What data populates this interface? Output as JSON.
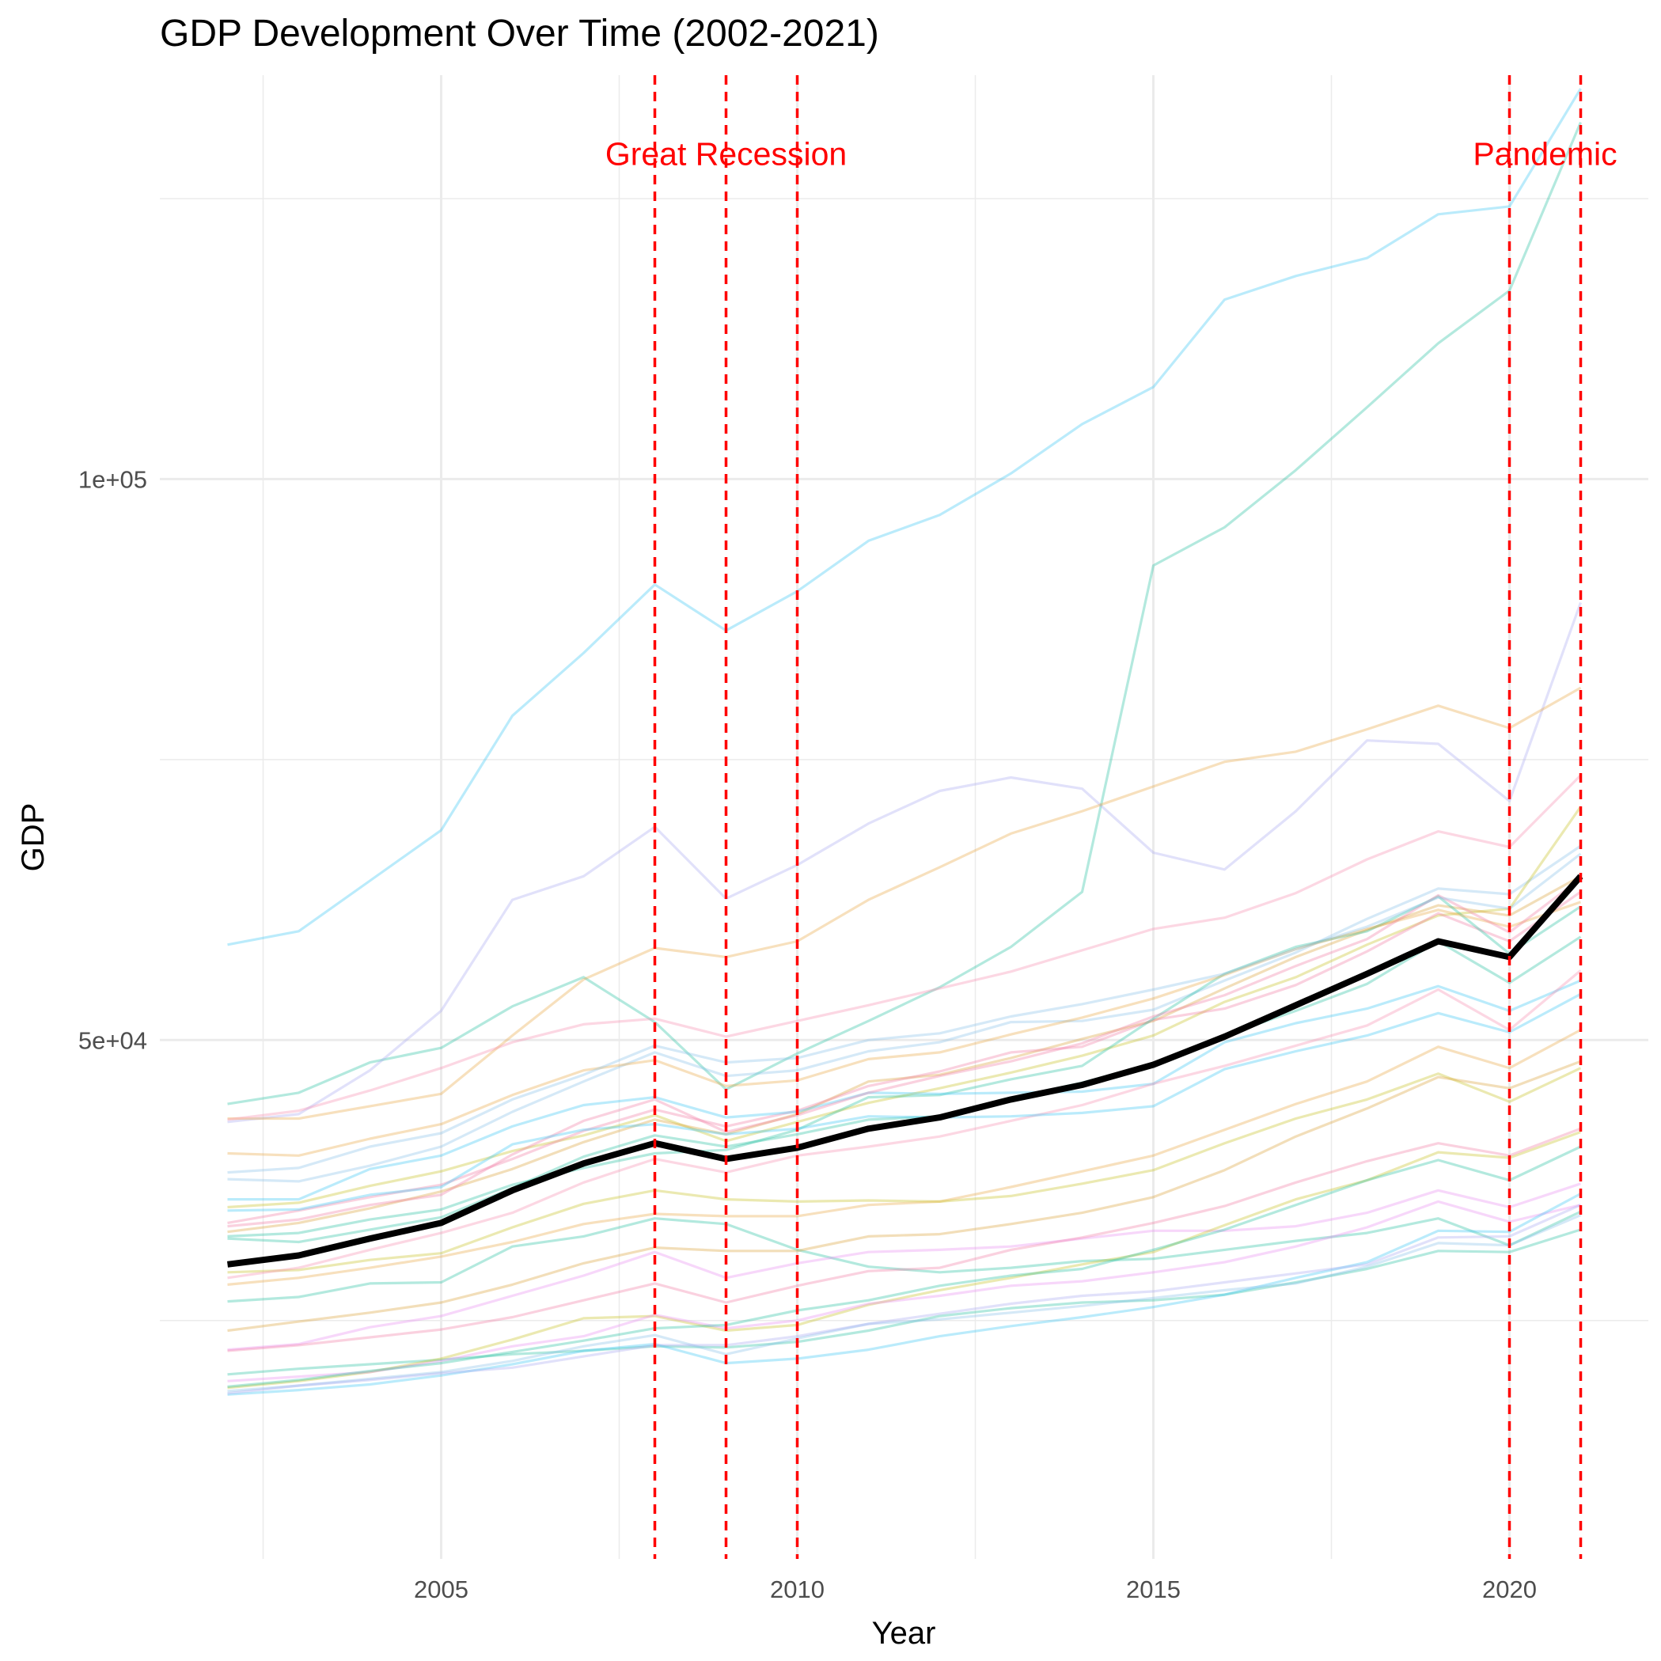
{
  "chart_data": {
    "type": "line",
    "title": "GDP Development Over Time (2002-2021)",
    "xlabel": "Year",
    "ylabel": "GDP",
    "x": [
      2002,
      2003,
      2004,
      2005,
      2006,
      2007,
      2008,
      2009,
      2010,
      2011,
      2012,
      2013,
      2014,
      2015,
      2016,
      2017,
      2018,
      2019,
      2020,
      2021
    ],
    "xlim": [
      2001.05,
      2021.95
    ],
    "ylim": [
      3750,
      136000
    ],
    "x_ticks": [
      2005,
      2010,
      2015,
      2020
    ],
    "x_tick_labels": [
      "2005",
      "2010",
      "2015",
      "2020"
    ],
    "y_ticks": [
      50000,
      100000
    ],
    "y_tick_labels": [
      "5e+04",
      "1e+05"
    ],
    "grid": true,
    "legend": "none",
    "annotations": [
      {
        "text": "Great Recession",
        "x": 2009,
        "y": 128000
      },
      {
        "text": "Pandemic",
        "x": 2020.5,
        "y": 128000
      }
    ],
    "event_lines": {
      "color": "#ff0000",
      "years": [
        2008,
        2009,
        2010,
        2020,
        2021
      ]
    },
    "highlight_series": {
      "color": "#000000",
      "values": [
        30000,
        30800,
        32300,
        33700,
        36600,
        39000,
        40800,
        39400,
        40400,
        42100,
        43100,
        44700,
        46000,
        47800,
        50300,
        53100,
        55900,
        58800,
        57400,
        64600
      ]
    },
    "series": [
      {
        "color": "#38c6f4",
        "values": [
          58500,
          59700,
          64200,
          68700,
          78900,
          84500,
          90600,
          86500,
          90000,
          94500,
          96800,
          100500,
          104900,
          108200,
          116000,
          118100,
          119700,
          123600,
          124300,
          134800
        ]
      },
      {
        "color": "#25c1a0",
        "values": [
          44300,
          45300,
          48000,
          49300,
          53000,
          55600,
          51600,
          45600,
          48800,
          51700,
          54700,
          58300,
          63200,
          92300,
          95700,
          100800,
          106400,
          112100,
          116800,
          131800
        ]
      },
      {
        "color": "#a8a8f0",
        "values": [
          42700,
          43400,
          47300,
          52600,
          62500,
          64600,
          69000,
          62600,
          65600,
          69300,
          72200,
          73400,
          72400,
          66700,
          65200,
          70400,
          76700,
          76400,
          71300,
          89000
        ]
      },
      {
        "color": "#e7a743",
        "values": [
          43000,
          43000,
          44100,
          45200,
          50400,
          55400,
          58200,
          57400,
          58800,
          62500,
          65400,
          68400,
          70400,
          72600,
          74800,
          75700,
          77700,
          79800,
          77800,
          81400
        ]
      },
      {
        "color": "#f58cb0",
        "values": [
          42900,
          43700,
          45500,
          47500,
          49800,
          51400,
          51900,
          50300,
          51700,
          53100,
          54600,
          56100,
          58000,
          59900,
          60900,
          63100,
          66100,
          68600,
          67200,
          73600
        ]
      },
      {
        "color": "#88c0e8",
        "values": [
          37600,
          37400,
          38800,
          40500,
          43600,
          46300,
          48900,
          46800,
          47300,
          49000,
          49800,
          51600,
          51700,
          52700,
          55300,
          57800,
          60800,
          63500,
          63000,
          67300
        ]
      },
      {
        "color": "#c7c020",
        "values": [
          35100,
          35500,
          37000,
          38300,
          40100,
          41500,
          43300,
          41000,
          42700,
          44400,
          45700,
          47100,
          48600,
          50400,
          53400,
          55600,
          58500,
          61100,
          61700,
          70800
        ]
      },
      {
        "color": "#d9a036",
        "values": [
          32900,
          33700,
          35000,
          36500,
          38500,
          40900,
          42900,
          41600,
          43400,
          46300,
          46900,
          48400,
          50100,
          51700,
          54600,
          57400,
          59800,
          62000,
          61100,
          64600
        ]
      },
      {
        "color": "#f27ba2",
        "values": [
          33700,
          34800,
          36000,
          37100,
          39400,
          41900,
          43800,
          42300,
          43700,
          45900,
          47200,
          48900,
          49400,
          51800,
          52800,
          54900,
          57900,
          61300,
          58800,
          63200
        ]
      },
      {
        "color": "#25c1a0",
        "values": [
          32500,
          32800,
          34000,
          34900,
          37100,
          38600,
          39900,
          40200,
          42000,
          44900,
          45100,
          46500,
          47700,
          51900,
          55900,
          58300,
          59700,
          62800,
          57700,
          61900
        ]
      },
      {
        "color": "#38c6f4",
        "values": [
          35800,
          35800,
          38500,
          39700,
          42300,
          44200,
          44900,
          43100,
          43600,
          45300,
          45200,
          45300,
          45400,
          46100,
          49800,
          51500,
          52800,
          54800,
          52600,
          55300
        ]
      },
      {
        "color": "#e7a743",
        "values": [
          39900,
          39700,
          41200,
          42500,
          45100,
          47300,
          48200,
          45900,
          46400,
          48300,
          48900,
          50500,
          52000,
          53700,
          55800,
          58100,
          59900,
          61600,
          60100,
          62300
        ]
      },
      {
        "color": "#f27ba2",
        "values": [
          33400,
          34000,
          35300,
          36200,
          39800,
          42800,
          44700,
          41800,
          43300,
          45300,
          46800,
          48100,
          49700,
          52100,
          54000,
          56600,
          59000,
          62900,
          59600,
          64400
        ]
      },
      {
        "color": "#25c1a0",
        "values": [
          32300,
          32000,
          33100,
          34200,
          36800,
          39600,
          41500,
          40500,
          41600,
          42900,
          43200,
          44800,
          46200,
          47900,
          50400,
          52600,
          55000,
          58800,
          55100,
          59200
        ]
      },
      {
        "color": "#88c0e8",
        "values": [
          38200,
          38600,
          40500,
          41700,
          44700,
          46900,
          49500,
          48000,
          48400,
          50000,
          50600,
          52100,
          53200,
          54500,
          55900,
          58100,
          60100,
          62700,
          61700,
          66600
        ]
      },
      {
        "color": "#e7a743",
        "values": [
          28200,
          28800,
          29700,
          30700,
          32000,
          33600,
          34500,
          34300,
          34300,
          35300,
          35600,
          36900,
          38300,
          39700,
          42000,
          44300,
          46300,
          49400,
          47500,
          50900
        ]
      },
      {
        "color": "#c7c020",
        "values": [
          29300,
          29500,
          30400,
          31000,
          33300,
          35400,
          36600,
          35800,
          35600,
          35700,
          35600,
          36100,
          37200,
          38400,
          40800,
          43000,
          44700,
          47000,
          44500,
          47500
        ]
      },
      {
        "color": "#f58cb0",
        "values": [
          28800,
          29700,
          31300,
          32800,
          34600,
          37300,
          39400,
          38200,
          39700,
          40500,
          41400,
          42800,
          44200,
          46100,
          47700,
          49500,
          51300,
          54500,
          50900,
          56200
        ]
      },
      {
        "color": "#25c1a0",
        "values": [
          26700,
          27100,
          28300,
          28400,
          31600,
          32500,
          34100,
          33600,
          31300,
          29800,
          29300,
          29700,
          30300,
          30500,
          31300,
          32100,
          32800,
          34100,
          31700,
          34700
        ]
      },
      {
        "color": "#38c6f4",
        "values": [
          34800,
          34900,
          36200,
          36900,
          40700,
          42000,
          42500,
          41600,
          42100,
          43200,
          43100,
          43200,
          43500,
          44100,
          47400,
          49000,
          50400,
          52400,
          50700,
          54100
        ]
      },
      {
        "color": "#e98cf0",
        "values": [
          22400,
          22900,
          24400,
          25400,
          27200,
          29000,
          31100,
          28800,
          30100,
          31100,
          31300,
          31600,
          32300,
          33000,
          33000,
          33400,
          34600,
          36600,
          35100,
          37200
        ]
      },
      {
        "color": "#d9a036",
        "values": [
          24100,
          24900,
          25700,
          26600,
          28200,
          30100,
          31500,
          31200,
          31200,
          32500,
          32700,
          33600,
          34600,
          36000,
          38400,
          41400,
          43900,
          46700,
          45700,
          48100
        ]
      },
      {
        "color": "#25c1a0",
        "values": [
          20200,
          20700,
          21100,
          21500,
          22000,
          22300,
          22700,
          22600,
          23100,
          24100,
          25400,
          26100,
          26600,
          26800,
          27300,
          28400,
          29600,
          31200,
          31100,
          33100
        ]
      },
      {
        "color": "#c7c020",
        "values": [
          19000,
          19600,
          20400,
          21600,
          23300,
          25200,
          25400,
          24100,
          24600,
          26400,
          27700,
          28800,
          30000,
          31100,
          33500,
          35800,
          37500,
          40000,
          39500,
          41800
        ]
      },
      {
        "color": "#f27ba2",
        "values": [
          22300,
          22800,
          23500,
          24200,
          25300,
          26800,
          28300,
          26600,
          28100,
          29400,
          29700,
          31300,
          32400,
          33700,
          35200,
          37300,
          39200,
          40800,
          39700,
          42100
        ]
      },
      {
        "color": "#e98cf0",
        "values": [
          19600,
          20000,
          20400,
          21400,
          22700,
          23600,
          25500,
          24300,
          25000,
          26500,
          27200,
          28100,
          28500,
          29300,
          30200,
          31600,
          33300,
          35600,
          33800,
          35300
        ]
      },
      {
        "color": "#38c6f4",
        "values": [
          18400,
          18800,
          19300,
          20100,
          21100,
          22300,
          22900,
          21200,
          21600,
          22400,
          23600,
          24500,
          25300,
          26200,
          27300,
          28800,
          30200,
          33000,
          32900,
          36300
        ]
      },
      {
        "color": "#88c0e8",
        "values": [
          18700,
          19200,
          19800,
          20400,
          21400,
          22700,
          23700,
          22000,
          23400,
          24700,
          25100,
          25700,
          26300,
          27000,
          27700,
          28300,
          29800,
          31900,
          31700,
          34400
        ]
      },
      {
        "color": "#a8a8f0",
        "values": [
          18500,
          19200,
          19700,
          20300,
          20800,
          21800,
          22800,
          22800,
          23600,
          24700,
          25600,
          26500,
          27200,
          27600,
          28400,
          29200,
          30000,
          32400,
          32500,
          35300
        ]
      },
      {
        "color": "#25c1a0",
        "values": [
          19100,
          19700,
          20500,
          21200,
          22200,
          23200,
          24300,
          24600,
          25900,
          26800,
          28100,
          29000,
          29600,
          31300,
          33100,
          35300,
          37500,
          39300,
          37500,
          40500
        ]
      }
    ]
  }
}
